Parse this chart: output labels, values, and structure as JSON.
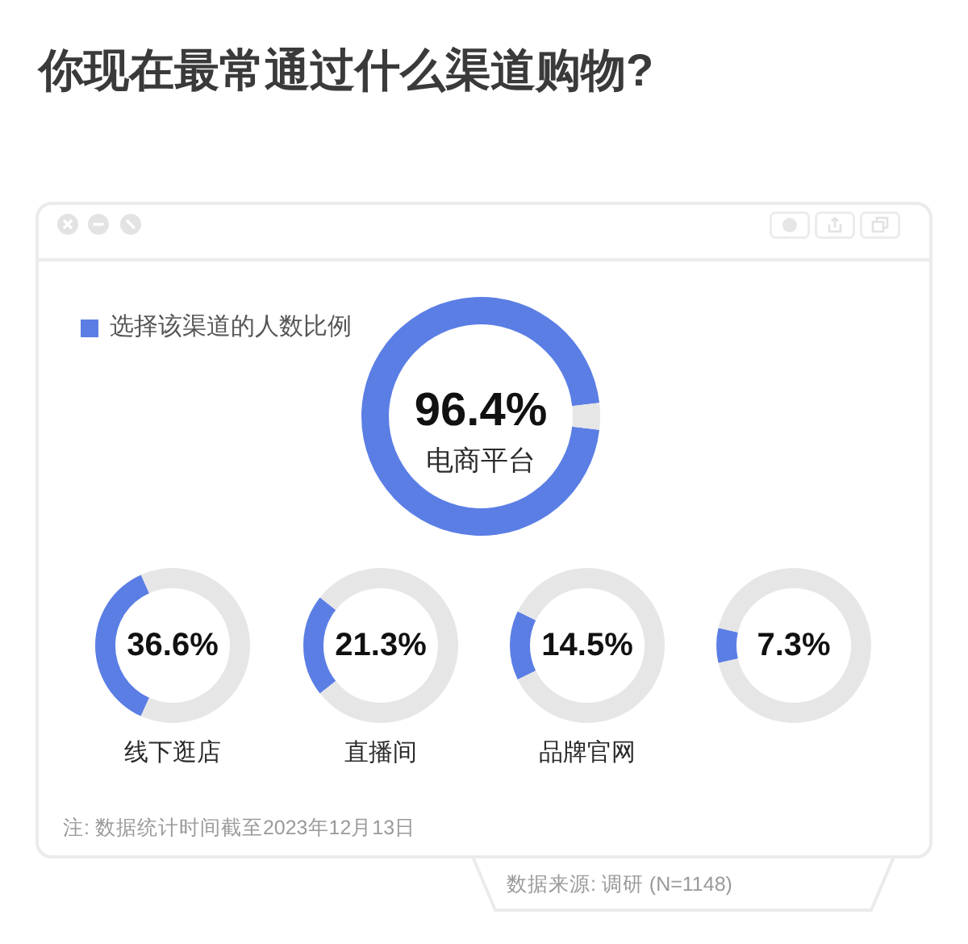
{
  "chart_data": [
    {
      "type": "other",
      "title": "你现在最常通过什么渠道购物?",
      "annotations": [
        "注: 数据统计时间截至2023年12月13日",
        "数据来源: 调研 (N=1148)"
      ]
    },
    {
      "type": "donut",
      "title": "电商平台",
      "legend": "top left",
      "categories": [
        "选择该渠道的人数比例",
        null
      ],
      "values": [
        96.4,
        3.6
      ],
      "colors": [
        "#5b7ee5",
        "#e6e6e6"
      ],
      "annotations": [
        "96.4%"
      ]
    },
    {
      "type": "donut",
      "title": "线下逛店",
      "categories": [
        null,
        null
      ],
      "values": [
        36.6,
        63.4
      ],
      "colors": [
        "#5b7ee5",
        "#e6e6e6"
      ],
      "annotations": [
        "36.6%"
      ]
    },
    {
      "type": "donut",
      "title": "直播间",
      "categories": [
        null,
        null
      ],
      "values": [
        21.3,
        78.7
      ],
      "colors": [
        "#5b7ee5",
        "#e6e6e6"
      ],
      "annotations": [
        "21.3%"
      ]
    },
    {
      "type": "donut",
      "title": "品牌官网",
      "categories": [
        null,
        null
      ],
      "values": [
        14.5,
        85.5
      ],
      "colors": [
        "#5b7ee5",
        "#e6e6e6"
      ],
      "annotations": [
        "14.5%"
      ]
    },
    {
      "type": "donut",
      "categories": [
        null,
        null
      ],
      "values": [
        7.3,
        92.7
      ],
      "colors": [
        "#5b7ee5",
        "#e6e6e6"
      ],
      "annotations": [
        "7.3%"
      ]
    }
  ]
}
